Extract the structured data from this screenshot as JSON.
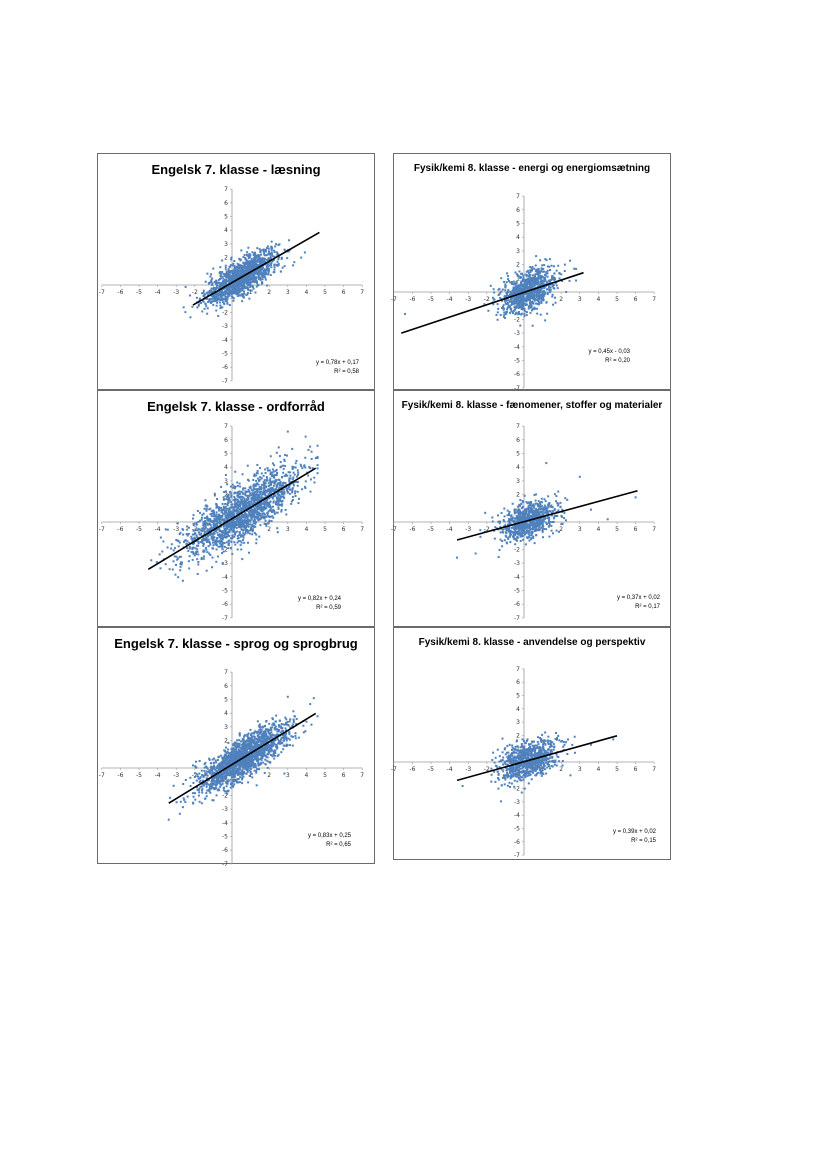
{
  "colors": {
    "points": "#4f81bd",
    "trend": "#000000",
    "axis": "#9a9a9a",
    "frame": "#6b6b6b"
  },
  "chart_data": [
    {
      "type": "scatter",
      "title": "Engelsk 7. klasse - læsning",
      "xlim": [
        -7,
        7
      ],
      "ylim": [
        -7,
        7
      ],
      "x_ticks": [
        -7,
        -6,
        -5,
        -4,
        -3,
        -2,
        -1,
        0,
        1,
        2,
        3,
        4,
        5,
        6,
        7
      ],
      "y_ticks": [
        7,
        6,
        5,
        4,
        3,
        2,
        1,
        0,
        -1,
        -2,
        -3,
        -4,
        -5,
        -6,
        -7
      ],
      "trendline": {
        "slope": 0.78,
        "intercept": 0.17,
        "x_range": [
          -2.1,
          4.7
        ]
      },
      "equation": "y = 0,78x + 0,17",
      "r2": "R² = 0,58",
      "point_cloud": {
        "n": 1400,
        "x_mean": 0.5,
        "x_sd": 0.95,
        "noise_sd": 0.62,
        "x_min": -2.6,
        "x_max": 4.8
      }
    },
    {
      "type": "scatter",
      "title": "Fysik/kemi 8. klasse - energi og energiomsætning",
      "xlim": [
        -7,
        7
      ],
      "ylim": [
        -7,
        7
      ],
      "x_ticks": [
        -7,
        -6,
        -5,
        -4,
        -3,
        -2,
        -1,
        0,
        1,
        2,
        3,
        4,
        5,
        6,
        7
      ],
      "y_ticks": [
        7,
        6,
        5,
        4,
        3,
        2,
        1,
        0,
        -1,
        -2,
        -3,
        -4,
        -5,
        -6,
        -7
      ],
      "trendline": {
        "slope": 0.45,
        "intercept": -0.03,
        "x_range": [
          -6.6,
          3.2
        ]
      },
      "equation": "y = 0,45x - 0,03",
      "r2": "R² = 0,20",
      "point_cloud": {
        "n": 900,
        "x_mean": 0.2,
        "x_sd": 0.75,
        "noise_sd": 0.72,
        "x_min": -2.2,
        "x_max": 2.8
      },
      "outliers": [
        [
          -6.4,
          -1.6
        ],
        [
          2.7,
          1.7
        ],
        [
          2.2,
          2.0
        ]
      ]
    },
    {
      "type": "scatter",
      "title": "Engelsk 7. klasse - ordforråd",
      "xlim": [
        -7,
        7
      ],
      "ylim": [
        -7,
        7
      ],
      "x_ticks": [
        -7,
        -6,
        -5,
        -4,
        -3,
        -2,
        -1,
        0,
        1,
        2,
        3,
        4,
        5,
        6,
        7
      ],
      "y_ticks": [
        7,
        6,
        5,
        4,
        3,
        2,
        1,
        0,
        -1,
        -2,
        -3,
        -4,
        -5,
        -6,
        -7
      ],
      "trendline": {
        "slope": 0.82,
        "intercept": 0.24,
        "x_range": [
          -4.5,
          4.5
        ]
      },
      "equation": "y = 0,82x + 0,24",
      "r2": "R² = 0,59",
      "point_cloud": {
        "n": 1800,
        "x_mean": 0.5,
        "x_sd": 1.55,
        "noise_sd": 1.0,
        "x_min": -4.5,
        "x_max": 4.6
      },
      "outliers": [
        [
          3.0,
          6.6
        ],
        [
          4.2,
          5.5
        ]
      ]
    },
    {
      "type": "scatter",
      "title": "Fysik/kemi 8. klasse - fænomener, stoffer og materialer",
      "xlim": [
        -7,
        7
      ],
      "ylim": [
        -7,
        7
      ],
      "x_ticks": [
        -7,
        -6,
        -5,
        -4,
        -3,
        -2,
        -1,
        0,
        1,
        2,
        3,
        4,
        5,
        6,
        7
      ],
      "y_ticks": [
        7,
        6,
        5,
        4,
        3,
        2,
        1,
        0,
        -1,
        -2,
        -3,
        -4,
        -5,
        -6,
        -7
      ],
      "trendline": {
        "slope": 0.37,
        "intercept": 0.02,
        "x_range": [
          -3.6,
          6.1
        ]
      },
      "equation": "y = 0,37x + 0,02",
      "r2": "R² = 0,17",
      "point_cloud": {
        "n": 800,
        "x_mean": 0.2,
        "x_sd": 0.8,
        "noise_sd": 0.66,
        "x_min": -2.5,
        "x_max": 3.6
      },
      "outliers": [
        [
          -3.6,
          -2.6
        ],
        [
          -2.6,
          -2.3
        ],
        [
          1.2,
          4.3
        ],
        [
          3.0,
          3.3
        ],
        [
          6.0,
          1.8
        ],
        [
          4.5,
          0.2
        ],
        [
          3.6,
          0.9
        ]
      ]
    },
    {
      "type": "scatter",
      "title": "Engelsk 7. klasse - sprog og sprogbrug",
      "xlim": [
        -7,
        7
      ],
      "ylim": [
        -7,
        7
      ],
      "x_ticks": [
        -7,
        -6,
        -5,
        -4,
        -3,
        -2,
        -1,
        0,
        1,
        2,
        3,
        4,
        5,
        6,
        7
      ],
      "y_ticks": [
        7,
        6,
        5,
        4,
        3,
        2,
        1,
        0,
        -1,
        -2,
        -3,
        -4,
        -5,
        -6,
        -7
      ],
      "trendline": {
        "slope": 0.83,
        "intercept": 0.25,
        "x_range": [
          -3.4,
          4.5
        ]
      },
      "equation": "y = 0,83x + 0,25",
      "r2": "R² = 0,65",
      "point_cloud": {
        "n": 1700,
        "x_mean": 0.6,
        "x_sd": 1.2,
        "noise_sd": 0.72,
        "x_min": -3.4,
        "x_max": 4.6
      },
      "outliers": [
        [
          4.4,
          5.1
        ],
        [
          3.0,
          5.2
        ]
      ]
    },
    {
      "type": "scatter",
      "title": "Fysik/kemi 8. klasse - anvendelse og perspektiv",
      "xlim": [
        -7,
        7
      ],
      "ylim": [
        -7,
        7
      ],
      "x_ticks": [
        -7,
        -6,
        -5,
        -4,
        -3,
        -2,
        -1,
        0,
        1,
        2,
        3,
        4,
        5,
        6,
        7
      ],
      "y_ticks": [
        7,
        6,
        5,
        4,
        3,
        2,
        1,
        0,
        -1,
        -2,
        -3,
        -4,
        -5,
        -6,
        -7
      ],
      "trendline": {
        "slope": 0.39,
        "intercept": 0.02,
        "x_range": [
          -3.6,
          5.0
        ]
      },
      "equation": "y = 0,39x + 0,02",
      "r2": "R² = 0,15",
      "point_cloud": {
        "n": 850,
        "x_mean": 0.2,
        "x_sd": 0.8,
        "noise_sd": 0.7,
        "x_min": -2.5,
        "x_max": 3.5
      },
      "outliers": [
        [
          -3.3,
          -1.8
        ],
        [
          4.8,
          1.7
        ],
        [
          3.6,
          1.3
        ],
        [
          2.5,
          -1.0
        ]
      ]
    }
  ]
}
